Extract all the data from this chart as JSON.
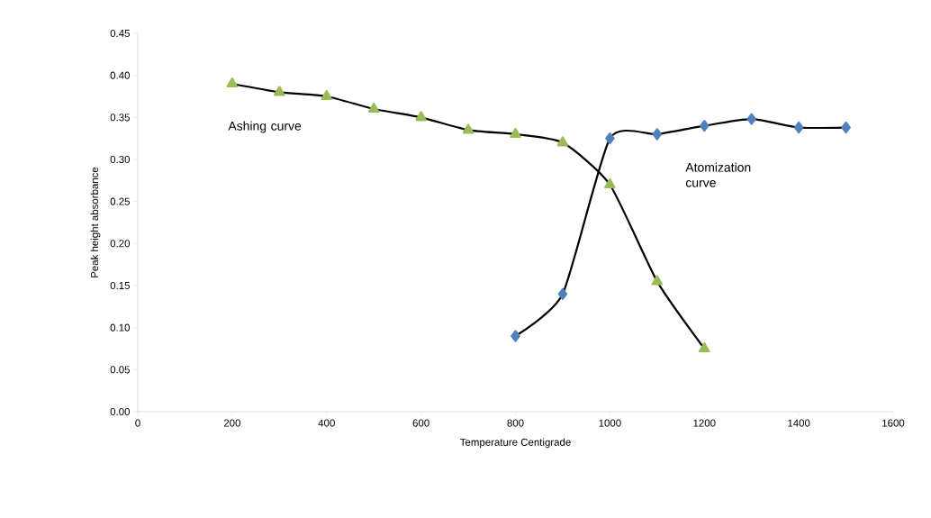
{
  "chart_data": {
    "type": "line",
    "xlabel": "Temperature Centigrade",
    "ylabel": "Peak height absorbance",
    "xlim": [
      0,
      1600
    ],
    "xticks": [
      0,
      200,
      400,
      600,
      800,
      1000,
      1200,
      1400,
      1600
    ],
    "ylim": [
      0,
      0.45
    ],
    "yticks": [
      {
        "value": 0,
        "label": "0.00"
      },
      {
        "value": 0.05,
        "label": "0.05"
      },
      {
        "value": 0.1,
        "label": "0.10"
      },
      {
        "value": 0.15,
        "label": "0.15"
      },
      {
        "value": 0.2,
        "label": "0.20"
      },
      {
        "value": 0.25,
        "label": "0.25"
      },
      {
        "value": 0.3,
        "label": "0.30"
      },
      {
        "value": 0.35,
        "label": "0.35"
      },
      {
        "value": 0.4,
        "label": "0.40"
      },
      {
        "value": 0.45,
        "label": "0.45"
      }
    ],
    "grid": false,
    "legend": false,
    "series": [
      {
        "name": "Ashing curve",
        "color": "#9bbb59",
        "marker": "triangle",
        "x": [
          200,
          300,
          400,
          500,
          600,
          700,
          800,
          900,
          1000,
          1100,
          1200
        ],
        "values": [
          0.39,
          0.38,
          0.375,
          0.36,
          0.35,
          0.335,
          0.33,
          0.32,
          0.27,
          0.155,
          0.075
        ]
      },
      {
        "name": "Atomization curve",
        "color": "#4f81bd",
        "marker": "diamond",
        "x": [
          800,
          900,
          1000,
          1100,
          1200,
          1300,
          1400,
          1500
        ],
        "values": [
          0.09,
          0.14,
          0.325,
          0.33,
          0.34,
          0.348,
          0.338,
          0.338
        ]
      }
    ]
  }
}
